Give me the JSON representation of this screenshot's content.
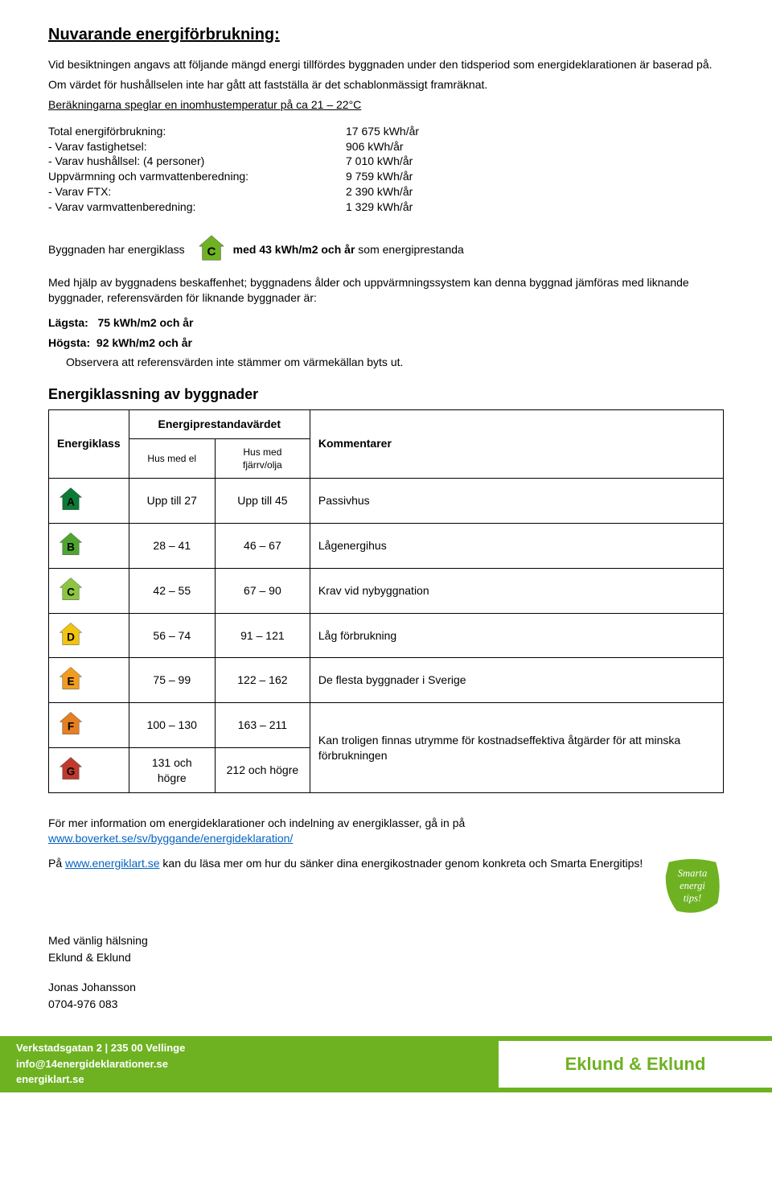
{
  "title": "Nuvarande energiförbrukning:",
  "intro1": "Vid besiktningen angavs att följande mängd energi tillfördes byggnaden under den tidsperiod som energideklarationen är baserad på.",
  "intro2": "Om värdet för hushållselen inte har gått att fastställa är det schablonmässigt framräknat.",
  "intro3": "Beräkningarna speglar en inomhustemperatur på ca 21 – 22°C",
  "consumption": [
    {
      "label": "Total energiförbrukning:",
      "value": "17 675 kWh/år"
    },
    {
      "label": "- Varav fastighetsel:",
      "value": "906 kWh/år"
    },
    {
      "label": "- Varav hushållsel: (4 personer)",
      "value": "7 010 kWh/år"
    },
    {
      "label": "Uppvärmning och varmvattenberedning:",
      "value": "9 759 kWh/år"
    },
    {
      "label": "- Varav FTX:",
      "value": "2 390 kWh/år"
    },
    {
      "label": "- Varav varmvattenberedning:",
      "value": "1 329 kWh/år"
    }
  ],
  "classLine": {
    "prefix": "Byggnaden har energiklass",
    "letter": "C",
    "color": "#6eb222",
    "suffix_bold": "med 43 kWh/m2 och år",
    "suffix_rest": " som energiprestanda"
  },
  "para_compare": "Med hjälp av byggnadens beskaffenhet; byggnadens ålder och uppvärmningssystem kan denna byggnad jämföras med liknande byggnader, referensvärden för liknande byggnader är:",
  "lowest_label": "Lägsta:",
  "lowest_val": "75 kWh/m2 och år",
  "highest_label": "Högsta:",
  "highest_val": "92 kWh/m2 och år",
  "obs": "Observera att referensvärden inte stämmer om värmekällan byts ut.",
  "table_title": "Energiklassning av byggnader",
  "table_h1": "Energiklass",
  "table_h2": "Energiprestandavärdet",
  "table_h3": "Kommentarer",
  "table_sub1": "Hus med el",
  "table_sub2": "Hus med fjärrv/olja",
  "table_rows": [
    {
      "letter": "A",
      "color": "#0a7a36",
      "c1": "Upp till 27",
      "c2": "Upp till 45",
      "comment": "Passivhus"
    },
    {
      "letter": "B",
      "color": "#4fa62f",
      "c1": "28 – 41",
      "c2": "46 – 67",
      "comment": "Lågenergihus"
    },
    {
      "letter": "C",
      "color": "#8cc63f",
      "c1": "42 – 55",
      "c2": "67 – 90",
      "comment": "Krav vid nybyggnation"
    },
    {
      "letter": "D",
      "color": "#f2c40f",
      "c1": "56 – 74",
      "c2": "91 – 121",
      "comment": "Låg förbrukning"
    },
    {
      "letter": "E",
      "color": "#f29c1f",
      "c1": "75 – 99",
      "c2": "122 – 162",
      "comment": "De flesta byggnader i Sverige"
    },
    {
      "letter": "F",
      "color": "#e67e22",
      "c1": "100 – 130",
      "c2": "163 – 211",
      "comment": "Kan troligen finnas utrymme för kostnadseffektiva åtgärder för att minska förbrukningen"
    },
    {
      "letter": "G",
      "color": "#c0392b",
      "c1": "131 och högre",
      "c2": "212 och högre",
      "comment": ""
    }
  ],
  "more_info_prefix": "För mer information om energideklarationer och indelning av energiklasser, gå in på ",
  "more_info_link": "www.boverket.se/sv/byggande/energideklaration/",
  "badge_text_prefix": "På ",
  "badge_link": "www.energiklart.se",
  "badge_text_suffix": " kan du läsa mer om hur du sänker dina energikostnader genom konkreta och Smarta Energitips!",
  "badge_label1": "Smarta",
  "badge_label2": "energi",
  "badge_label3": "tips!",
  "greeting": "Med vänlig hälsning",
  "company": "Eklund & Eklund",
  "signer_name": "Jonas Johansson",
  "signer_phone": "0704-976 083",
  "footer_addr": "Verkstadsgatan 2 | 235 00 Vellinge",
  "footer_email": "info@14energideklarationer.se",
  "footer_web": "energiklart.se",
  "footer_brand": "Eklund & Eklund"
}
